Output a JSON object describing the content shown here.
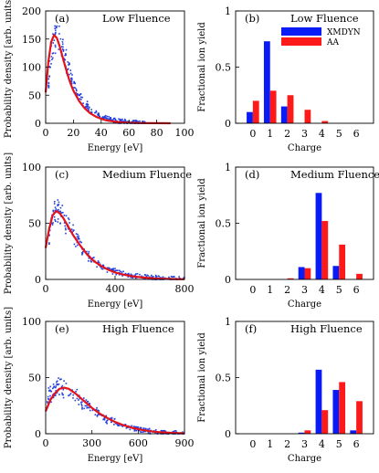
{
  "colors": {
    "scatter": "#1f3fe0",
    "fit": "#e3121b",
    "xmdyn": "#0a1cf5",
    "aa": "#ff1a1a",
    "axis": "#000000"
  },
  "chart_data": [
    {
      "type": "scatter",
      "panel_label": "(a)",
      "title": "Low Fluence",
      "xlabel": "Energy [eV]",
      "ylabel": "Probability density [arb. units]",
      "xlim": [
        0,
        100
      ],
      "ylim": [
        0,
        200
      ],
      "xticks": [
        "0",
        "20",
        "40",
        "60",
        "80",
        "100"
      ],
      "yticks": [
        "0",
        "50",
        "100",
        "150",
        "200"
      ],
      "series": [
        {
          "role": "scatter",
          "x": [
            2,
            4,
            6,
            8,
            10,
            12,
            14,
            16,
            18,
            20,
            24,
            28,
            32,
            36,
            40,
            44,
            48,
            52,
            56,
            60,
            66,
            72
          ],
          "y": [
            70,
            125,
            150,
            158,
            150,
            138,
            120,
            100,
            82,
            68,
            50,
            35,
            25,
            18,
            12,
            9,
            6,
            4,
            3,
            2,
            1,
            0
          ]
        },
        {
          "role": "fit",
          "x": [
            0,
            2,
            4,
            6,
            8,
            10,
            12,
            14,
            16,
            18,
            20,
            24,
            28,
            32,
            36,
            40,
            44,
            48,
            52,
            56,
            60,
            65,
            70,
            80,
            90
          ],
          "y": [
            55,
            110,
            145,
            157,
            152,
            138,
            120,
            102,
            85,
            70,
            58,
            40,
            27,
            18,
            12,
            8,
            5,
            3.5,
            2.3,
            1.5,
            1,
            0.6,
            0.3,
            0.1,
            0
          ]
        }
      ]
    },
    {
      "type": "bar",
      "panel_label": "(b)",
      "title": "Low Fluence",
      "xlabel": "Charge",
      "ylabel": "Fractional ion yield",
      "categories": [
        "0",
        "1",
        "2",
        "3",
        "4",
        "5",
        "6"
      ],
      "ylim": [
        0,
        1
      ],
      "yticks": [
        "0",
        "0.5",
        "1"
      ],
      "series": [
        {
          "name": "XMDYN",
          "values": [
            0.1,
            0.73,
            0.15,
            0,
            0,
            0,
            0
          ]
        },
        {
          "name": "AA",
          "values": [
            0.2,
            0.29,
            0.25,
            0.12,
            0.02,
            0,
            0
          ]
        }
      ]
    },
    {
      "type": "scatter",
      "panel_label": "(c)",
      "title": "Medium Fluence",
      "xlabel": "Energy [eV]",
      "ylabel": "Probability density [arb. units]",
      "xlim": [
        0,
        800
      ],
      "ylim": [
        0,
        100
      ],
      "xticks": [
        "0",
        "400",
        "800"
      ],
      "yticks": [
        "0",
        "50",
        "100"
      ],
      "series": [
        {
          "role": "scatter",
          "x": [
            20,
            40,
            60,
            80,
            100,
            130,
            160,
            200,
            240,
            280,
            320,
            360,
            400,
            450,
            500,
            560,
            620,
            680,
            740,
            800
          ],
          "y": [
            40,
            55,
            65,
            60,
            55,
            47,
            40,
            30,
            22,
            16,
            12,
            9,
            7,
            5,
            3.5,
            2.5,
            1.6,
            1,
            0.6,
            0.3
          ]
        },
        {
          "role": "fit",
          "x": [
            0,
            20,
            40,
            60,
            80,
            100,
            130,
            160,
            200,
            240,
            280,
            320,
            360,
            400,
            450,
            500,
            560,
            620,
            680,
            740,
            800
          ],
          "y": [
            28,
            45,
            57,
            61,
            59,
            55,
            47,
            39,
            30,
            22,
            16,
            12,
            8.6,
            6.2,
            4.2,
            2.8,
            1.7,
            1,
            0.6,
            0.35,
            0.2
          ]
        }
      ]
    },
    {
      "type": "bar",
      "panel_label": "(d)",
      "title": "Medium Fluence",
      "xlabel": "Charge",
      "ylabel": "Fractional ion yield",
      "categories": [
        "0",
        "1",
        "2",
        "3",
        "4",
        "5",
        "6"
      ],
      "ylim": [
        0,
        1
      ],
      "yticks": [
        "0",
        "0.5",
        "1"
      ],
      "series": [
        {
          "name": "XMDYN",
          "values": [
            0,
            0,
            0,
            0.11,
            0.77,
            0.12,
            0
          ]
        },
        {
          "name": "AA",
          "values": [
            0,
            0,
            0.01,
            0.1,
            0.52,
            0.31,
            0.05
          ]
        }
      ]
    },
    {
      "type": "scatter",
      "panel_label": "(e)",
      "title": "High Fluence",
      "xlabel": "Energy [eV]",
      "ylabel": "Probability density [arb. units]",
      "xlim": [
        0,
        900
      ],
      "ylim": [
        0,
        100
      ],
      "xticks": [
        "0",
        "300",
        "600",
        "900"
      ],
      "yticks": [
        "0",
        "50",
        "100"
      ],
      "series": [
        {
          "role": "scatter",
          "x": [
            10,
            40,
            70,
            100,
            130,
            160,
            200,
            240,
            280,
            320,
            360,
            400,
            450,
            500,
            560,
            620,
            680,
            740,
            800,
            860,
            900
          ],
          "y": [
            33,
            36,
            40,
            42,
            40,
            38,
            33,
            28,
            24,
            20,
            16,
            13,
            10,
            7,
            5,
            3.5,
            2.3,
            1.5,
            1,
            0.6,
            0.4
          ]
        },
        {
          "role": "fit",
          "x": [
            0,
            30,
            60,
            90,
            120,
            150,
            200,
            250,
            300,
            350,
            400,
            450,
            500,
            560,
            620,
            680,
            740,
            800,
            860,
            900
          ],
          "y": [
            20,
            30,
            36,
            40,
            41,
            40,
            35,
            29,
            23,
            18,
            14,
            10.5,
            7.8,
            5.3,
            3.5,
            2.2,
            1.4,
            0.9,
            0.5,
            0.3
          ]
        }
      ]
    },
    {
      "type": "bar",
      "panel_label": "(f)",
      "title": "High Fluence",
      "xlabel": "Charge",
      "ylabel": "Fractional ion yield",
      "categories": [
        "0",
        "1",
        "2",
        "3",
        "4",
        "5",
        "6"
      ],
      "ylim": [
        0,
        1
      ],
      "yticks": [
        "0",
        "0.5",
        "1"
      ],
      "series": [
        {
          "name": "XMDYN",
          "values": [
            0,
            0,
            0,
            0.01,
            0.57,
            0.39,
            0.03
          ]
        },
        {
          "name": "AA",
          "values": [
            0,
            0,
            0,
            0.03,
            0.21,
            0.46,
            0.29
          ]
        }
      ]
    }
  ]
}
